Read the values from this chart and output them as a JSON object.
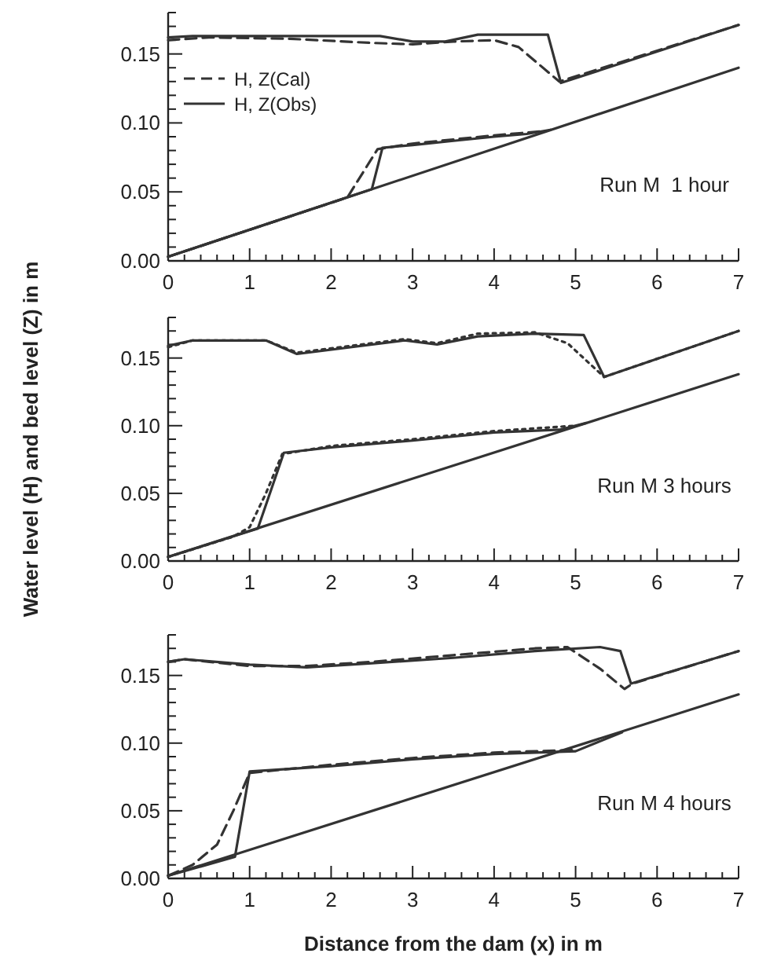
{
  "chart_data": [
    {
      "type": "line",
      "legend": "top left",
      "annotations": [
        "Run M  1 hour"
      ],
      "xlim": [
        0,
        7
      ],
      "ylim": [
        0,
        0.18
      ],
      "xticks": [
        0,
        {
          "value": 0.2,
          "label": null
        },
        {
          "value": 0.4,
          "label": null
        },
        {
          "value": 0.6,
          "label": null
        },
        {
          "value": 0.8,
          "label": null
        },
        1,
        {
          "value": 1.2,
          "label": null
        },
        {
          "value": 1.4,
          "label": null
        },
        {
          "value": 1.6,
          "label": null
        },
        {
          "value": 1.8,
          "label": null
        },
        2,
        {
          "value": 2.2,
          "label": null
        },
        {
          "value": 2.4,
          "label": null
        },
        {
          "value": 2.6,
          "label": null
        },
        {
          "value": 2.8,
          "label": null
        },
        3,
        {
          "value": 3.2,
          "label": null
        },
        {
          "value": 3.4,
          "label": null
        },
        {
          "value": 3.6,
          "label": null
        },
        {
          "value": 3.8,
          "label": null
        },
        4,
        {
          "value": 4.2,
          "label": null
        },
        {
          "value": 4.4,
          "label": null
        },
        {
          "value": 4.6,
          "label": null
        },
        {
          "value": 4.8,
          "label": null
        },
        5,
        {
          "value": 5.2,
          "label": null
        },
        {
          "value": 5.4,
          "label": null
        },
        {
          "value": 5.6,
          "label": null
        },
        {
          "value": 5.8,
          "label": null
        },
        6,
        {
          "value": 6.2,
          "label": null
        },
        {
          "value": 6.4,
          "label": null
        },
        {
          "value": 6.6,
          "label": null
        },
        {
          "value": 6.8,
          "label": null
        },
        7
      ],
      "yticks": [
        {
          "value": 0,
          "label": "0.00"
        },
        {
          "value": 0.01,
          "label": null
        },
        {
          "value": 0.02,
          "label": null
        },
        {
          "value": 0.03,
          "label": null
        },
        {
          "value": 0.04,
          "label": null
        },
        {
          "value": 0.05,
          "label": "0.05"
        },
        {
          "value": 0.06,
          "label": null
        },
        {
          "value": 0.07,
          "label": null
        },
        {
          "value": 0.08,
          "label": null
        },
        {
          "value": 0.09,
          "label": null
        },
        {
          "value": 0.1,
          "label": "0.10"
        },
        {
          "value": 0.11,
          "label": null
        },
        {
          "value": 0.12,
          "label": null
        },
        {
          "value": 0.13,
          "label": null
        },
        {
          "value": 0.14,
          "label": null
        },
        {
          "value": 0.15,
          "label": "0.15"
        },
        {
          "value": 0.16,
          "label": null
        },
        {
          "value": 0.17,
          "label": null
        },
        {
          "value": 0.18,
          "label": null
        }
      ],
      "series": [
        {
          "name": "H, Z(Cal)",
          "color": "#333333",
          "line_style": "dashed",
          "x": [
            0,
            0.5,
            1.5,
            2.5,
            3,
            3.5,
            4,
            4.3,
            4.5,
            4.8,
            7
          ],
          "values": [
            0.16,
            0.162,
            0.161,
            0.158,
            0.157,
            0.159,
            0.16,
            0.155,
            0.145,
            0.13,
            0.171
          ]
        },
        {
          "name": "H, Z(Obs)",
          "color": "#333333",
          "line_style": "solid",
          "x": [
            0,
            0.3,
            1.5,
            2.6,
            3,
            3.4,
            3.8,
            4.66,
            4.82,
            7
          ],
          "values": [
            0.162,
            0.163,
            0.163,
            0.163,
            0.159,
            0.159,
            0.164,
            0.164,
            0.129,
            0.171
          ]
        },
        {
          "color": "#333333",
          "line_style": "dashed",
          "x": [
            0,
            2.2,
            2.57,
            3,
            4,
            4.6
          ],
          "values": [
            0.003,
            0.046,
            0.081,
            0.085,
            0.091,
            0.094
          ]
        },
        {
          "color": "#333333",
          "line_style": "solid",
          "x": [
            0,
            2.5,
            2.63,
            3,
            3.5,
            4,
            4.4,
            4.69
          ],
          "values": [
            0.003,
            0.052,
            0.082,
            0.084,
            0.087,
            0.09,
            0.092,
            0.095
          ]
        },
        {
          "color": "#333333",
          "line_style": "solid",
          "x": [
            0,
            7
          ],
          "values": [
            0.003,
            0.14
          ]
        }
      ]
    },
    {
      "type": "line",
      "legend": false,
      "annotations": [
        "Run M 3 hours"
      ],
      "ylabel": "Water level (H) and bed level (Z) in m",
      "xlim": [
        0,
        7
      ],
      "ylim": [
        0,
        0.18
      ],
      "xticks": [
        0,
        {
          "value": 0.2,
          "label": null
        },
        {
          "value": 0.4,
          "label": null
        },
        {
          "value": 0.6,
          "label": null
        },
        {
          "value": 0.8,
          "label": null
        },
        1,
        {
          "value": 1.2,
          "label": null
        },
        {
          "value": 1.4,
          "label": null
        },
        {
          "value": 1.6,
          "label": null
        },
        {
          "value": 1.8,
          "label": null
        },
        2,
        {
          "value": 2.2,
          "label": null
        },
        {
          "value": 2.4,
          "label": null
        },
        {
          "value": 2.6,
          "label": null
        },
        {
          "value": 2.8,
          "label": null
        },
        3,
        {
          "value": 3.2,
          "label": null
        },
        {
          "value": 3.4,
          "label": null
        },
        {
          "value": 3.6,
          "label": null
        },
        {
          "value": 3.8,
          "label": null
        },
        4,
        {
          "value": 4.2,
          "label": null
        },
        {
          "value": 4.4,
          "label": null
        },
        {
          "value": 4.6,
          "label": null
        },
        {
          "value": 4.8,
          "label": null
        },
        5,
        {
          "value": 5.2,
          "label": null
        },
        {
          "value": 5.4,
          "label": null
        },
        {
          "value": 5.6,
          "label": null
        },
        {
          "value": 5.8,
          "label": null
        },
        6,
        {
          "value": 6.2,
          "label": null
        },
        {
          "value": 6.4,
          "label": null
        },
        {
          "value": 6.6,
          "label": null
        },
        {
          "value": 6.8,
          "label": null
        },
        7
      ],
      "yticks": [
        {
          "value": 0,
          "label": "0.00"
        },
        {
          "value": 0.01,
          "label": null
        },
        {
          "value": 0.02,
          "label": null
        },
        {
          "value": 0.03,
          "label": null
        },
        {
          "value": 0.04,
          "label": null
        },
        {
          "value": 0.05,
          "label": "0.05"
        },
        {
          "value": 0.06,
          "label": null
        },
        {
          "value": 0.07,
          "label": null
        },
        {
          "value": 0.08,
          "label": null
        },
        {
          "value": 0.09,
          "label": null
        },
        {
          "value": 0.1,
          "label": "0.10"
        },
        {
          "value": 0.11,
          "label": null
        },
        {
          "value": 0.12,
          "label": null
        },
        {
          "value": 0.13,
          "label": null
        },
        {
          "value": 0.14,
          "label": null
        },
        {
          "value": 0.15,
          "label": "0.15"
        },
        {
          "value": 0.16,
          "label": null
        },
        {
          "value": 0.17,
          "label": null
        },
        {
          "value": 0.18,
          "label": null
        }
      ],
      "series": [
        {
          "color": "#333333",
          "line_style": "dotted",
          "x": [
            0,
            0.3,
            1.2,
            1.58,
            2.9,
            3.3,
            3.8,
            4.5,
            4.9,
            5.35,
            7
          ],
          "values": [
            0.158,
            0.163,
            0.163,
            0.154,
            0.164,
            0.161,
            0.168,
            0.169,
            0.161,
            0.136,
            0.17
          ]
        },
        {
          "color": "#333333",
          "line_style": "solid",
          "x": [
            0,
            0.3,
            1.2,
            1.58,
            2.9,
            3.3,
            3.8,
            4.5,
            5.1,
            5.35,
            7
          ],
          "values": [
            0.159,
            0.163,
            0.163,
            0.153,
            0.163,
            0.16,
            0.166,
            0.168,
            0.167,
            0.136,
            0.17
          ]
        },
        {
          "color": "#333333",
          "line_style": "dotted",
          "x": [
            0,
            0.8,
            1,
            1.2,
            1.4,
            2,
            3,
            4,
            5
          ],
          "values": [
            0.003,
            0.018,
            0.025,
            0.05,
            0.079,
            0.085,
            0.09,
            0.096,
            0.1
          ]
        },
        {
          "color": "#333333",
          "line_style": "solid",
          "x": [
            0,
            1.1,
            1.42,
            2,
            3,
            4,
            4.8,
            5.13
          ],
          "values": [
            0.003,
            0.024,
            0.08,
            0.084,
            0.089,
            0.095,
            0.097,
            0.102
          ]
        },
        {
          "color": "#333333",
          "line_style": "solid",
          "x": [
            0,
            7
          ],
          "values": [
            0.003,
            0.138
          ]
        }
      ]
    },
    {
      "type": "line",
      "legend": false,
      "annotations": [
        "Run M 4 hours"
      ],
      "xlabel": "Distance from the dam (x) in m",
      "xlim": [
        0,
        7
      ],
      "ylim": [
        0,
        0.18
      ],
      "xticks": [
        0,
        {
          "value": 0.2,
          "label": null
        },
        {
          "value": 0.4,
          "label": null
        },
        {
          "value": 0.6,
          "label": null
        },
        {
          "value": 0.8,
          "label": null
        },
        1,
        {
          "value": 1.2,
          "label": null
        },
        {
          "value": 1.4,
          "label": null
        },
        {
          "value": 1.6,
          "label": null
        },
        {
          "value": 1.8,
          "label": null
        },
        2,
        {
          "value": 2.2,
          "label": null
        },
        {
          "value": 2.4,
          "label": null
        },
        {
          "value": 2.6,
          "label": null
        },
        {
          "value": 2.8,
          "label": null
        },
        3,
        {
          "value": 3.2,
          "label": null
        },
        {
          "value": 3.4,
          "label": null
        },
        {
          "value": 3.6,
          "label": null
        },
        {
          "value": 3.8,
          "label": null
        },
        4,
        {
          "value": 4.2,
          "label": null
        },
        {
          "value": 4.4,
          "label": null
        },
        {
          "value": 4.6,
          "label": null
        },
        {
          "value": 4.8,
          "label": null
        },
        5,
        {
          "value": 5.2,
          "label": null
        },
        {
          "value": 5.4,
          "label": null
        },
        {
          "value": 5.6,
          "label": null
        },
        {
          "value": 5.8,
          "label": null
        },
        6,
        {
          "value": 6.2,
          "label": null
        },
        {
          "value": 6.4,
          "label": null
        },
        {
          "value": 6.6,
          "label": null
        },
        {
          "value": 6.8,
          "label": null
        },
        7
      ],
      "yticks": [
        {
          "value": 0,
          "label": "0.00"
        },
        {
          "value": 0.01,
          "label": null
        },
        {
          "value": 0.02,
          "label": null
        },
        {
          "value": 0.03,
          "label": null
        },
        {
          "value": 0.04,
          "label": null
        },
        {
          "value": 0.05,
          "label": "0.05"
        },
        {
          "value": 0.06,
          "label": null
        },
        {
          "value": 0.07,
          "label": null
        },
        {
          "value": 0.08,
          "label": null
        },
        {
          "value": 0.09,
          "label": null
        },
        {
          "value": 0.1,
          "label": "0.10"
        },
        {
          "value": 0.11,
          "label": null
        },
        {
          "value": 0.12,
          "label": null
        },
        {
          "value": 0.13,
          "label": null
        },
        {
          "value": 0.14,
          "label": null
        },
        {
          "value": 0.15,
          "label": "0.15"
        },
        {
          "value": 0.16,
          "label": null
        },
        {
          "value": 0.17,
          "label": null
        },
        {
          "value": 0.18,
          "label": null
        }
      ],
      "series": [
        {
          "color": "#333333",
          "line_style": "dashed",
          "x": [
            0,
            0.2,
            1,
            1.7,
            2.5,
            3.5,
            4.5,
            4.9,
            5.3,
            5.6,
            5.7,
            7
          ],
          "values": [
            0.16,
            0.162,
            0.157,
            0.157,
            0.16,
            0.165,
            0.17,
            0.171,
            0.155,
            0.14,
            0.144,
            0.168
          ]
        },
        {
          "color": "#333333",
          "line_style": "solid",
          "x": [
            0,
            0.2,
            1,
            1.7,
            2.5,
            3.5,
            4.5,
            5.3,
            5.55,
            5.68,
            7
          ],
          "values": [
            0.16,
            0.162,
            0.158,
            0.156,
            0.159,
            0.163,
            0.168,
            0.171,
            0.168,
            0.144,
            0.168
          ]
        },
        {
          "color": "#333333",
          "line_style": "dashed",
          "x": [
            0,
            0.3,
            0.6,
            0.8,
            1,
            2,
            3,
            4,
            5
          ],
          "values": [
            0.002,
            0.01,
            0.025,
            0.05,
            0.078,
            0.084,
            0.089,
            0.093,
            0.095
          ]
        },
        {
          "color": "#333333",
          "line_style": "solid",
          "x": [
            0,
            0.82,
            1,
            2,
            3,
            4,
            5,
            5.57
          ],
          "values": [
            0.002,
            0.016,
            0.079,
            0.083,
            0.088,
            0.092,
            0.094,
            0.108
          ]
        },
        {
          "color": "#333333",
          "line_style": "solid",
          "x": [
            0,
            7
          ],
          "values": [
            0.002,
            0.136
          ]
        }
      ]
    }
  ]
}
